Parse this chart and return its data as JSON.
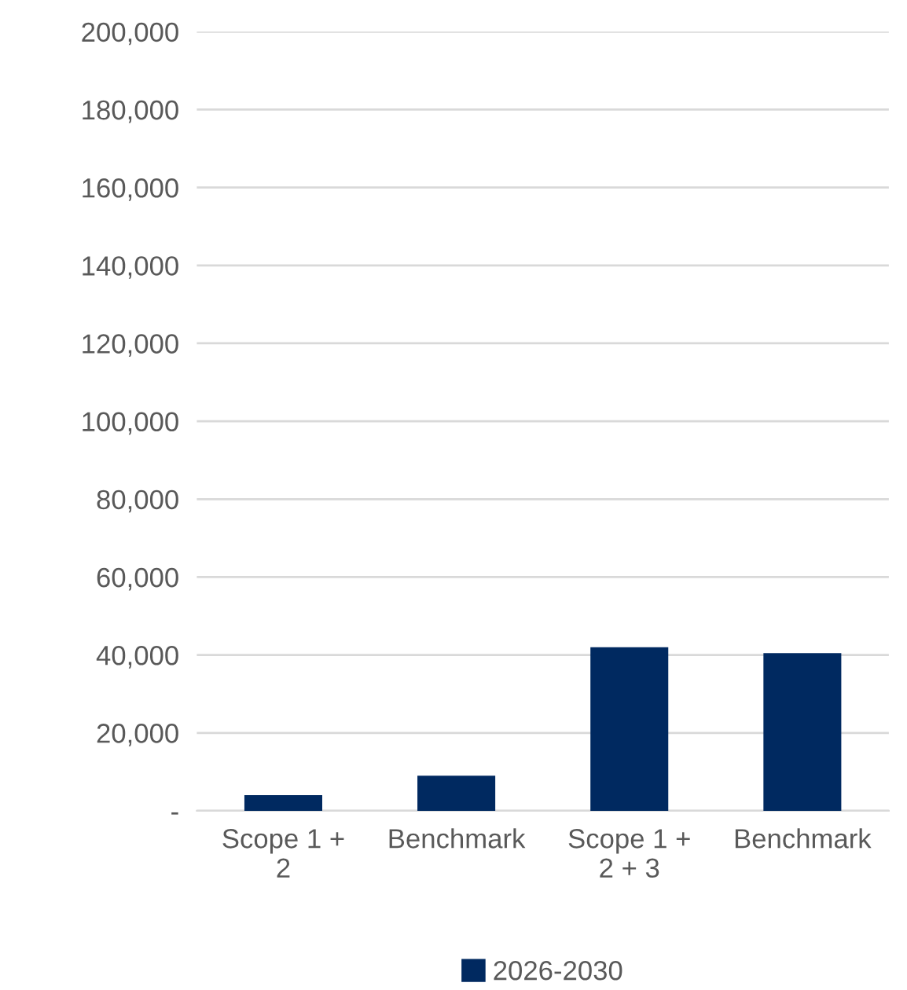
{
  "chart_data": {
    "type": "bar",
    "categories": [
      "Scope 1 +\n2",
      "Benchmark",
      "Scope 1 +\n2 + 3",
      "Benchmark"
    ],
    "series": [
      {
        "name": "2026-2030",
        "color": "#002960",
        "values": [
          4000,
          9000,
          42000,
          40500
        ]
      }
    ],
    "ylim": [
      0,
      200000
    ],
    "yticks": [
      {
        "value": 0,
        "label": "-"
      },
      {
        "value": 20000,
        "label": "20,000"
      },
      {
        "value": 40000,
        "label": "40,000"
      },
      {
        "value": 60000,
        "label": "60,000"
      },
      {
        "value": 80000,
        "label": "80,000"
      },
      {
        "value": 100000,
        "label": "100,000"
      },
      {
        "value": 120000,
        "label": "120,000"
      },
      {
        "value": 140000,
        "label": "140,000"
      },
      {
        "value": 160000,
        "label": "160,000"
      },
      {
        "value": 180000,
        "label": "180,000"
      },
      {
        "value": 200000,
        "label": "200,000"
      }
    ],
    "grid": "y",
    "legend": "bottom"
  }
}
